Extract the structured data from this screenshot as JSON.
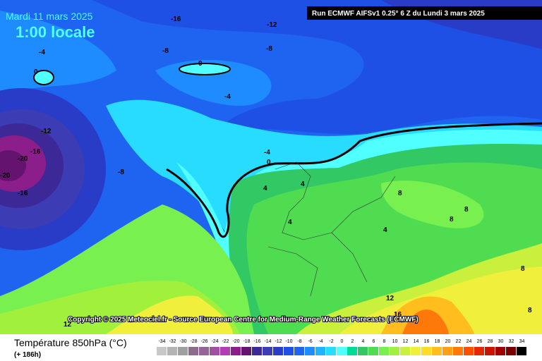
{
  "header": {
    "date": "Mardi 11 mars 2025",
    "time": "1:00 locale",
    "run": "Run ECMWF AIFSv1 0.25° 6 Z du Lundi 3 mars 2025"
  },
  "map": {
    "contour_labels": [
      -16,
      -12,
      -8,
      -8,
      -4,
      0,
      0,
      -4,
      -12,
      -16,
      -20,
      -20,
      -8,
      -16,
      -4,
      0,
      4,
      4,
      4,
      8,
      8,
      8,
      4,
      8,
      12,
      16,
      12,
      8
    ],
    "copyright": "Copyright © 2025 Meteociel.fr - Source European Centre for Medium-Range Weather Forecasts (ECMWF)"
  },
  "legend": {
    "title": "Température 850hPa (°C)",
    "lead": "(+ 186h)",
    "ticks": [
      -34,
      -32,
      -30,
      -28,
      -26,
      -24,
      -22,
      -20,
      -18,
      -16,
      -14,
      -12,
      -10,
      -8,
      -6,
      -4,
      -2,
      0,
      2,
      4,
      6,
      8,
      10,
      12,
      14,
      16,
      18,
      20,
      22,
      24,
      26,
      28,
      30,
      32,
      34
    ],
    "colors": [
      "#c8c8c8",
      "#b4b4b4",
      "#a0a0a0",
      "#8c6e8c",
      "#966496",
      "#a050a0",
      "#b43cb4",
      "#8c1e8c",
      "#64146e",
      "#3c2896",
      "#3c3cb4",
      "#283cc8",
      "#1e50e6",
      "#1e64f0",
      "#1e8cff",
      "#1eb4ff",
      "#28dcff",
      "#50ffff",
      "#00dc96",
      "#32c864",
      "#50dc50",
      "#78f050",
      "#a0f03c",
      "#c8f03c",
      "#f0f03c",
      "#ffdc28",
      "#ffbe1e",
      "#ffa014",
      "#ff780a",
      "#ff5000",
      "#e62800",
      "#c81400",
      "#a00000",
      "#780000",
      "#000000"
    ]
  }
}
